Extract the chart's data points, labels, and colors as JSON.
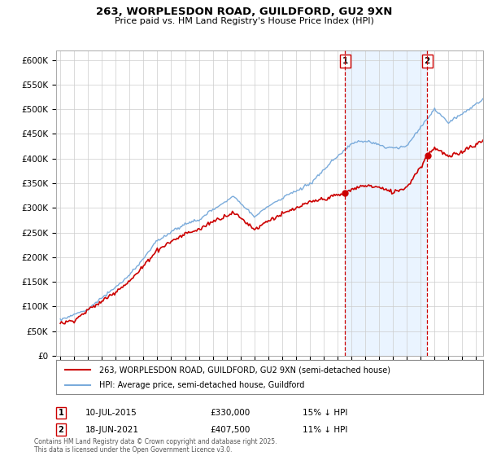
{
  "title_line1": "263, WORPLESDON ROAD, GUILDFORD, GU2 9XN",
  "title_line2": "Price paid vs. HM Land Registry's House Price Index (HPI)",
  "ylim": [
    0,
    620000
  ],
  "ytick_step": 50000,
  "x_start_year": 1995,
  "x_end_year": 2025,
  "line1_color": "#cc0000",
  "line2_color": "#7aabdb",
  "purchase1_price": 330000,
  "purchase1_date": "10-JUL-2015",
  "purchase1_label": "15% ↓ HPI",
  "purchase1_year": 2015.53,
  "purchase2_price": 407500,
  "purchase2_date": "18-JUN-2021",
  "purchase2_label": "11% ↓ HPI",
  "purchase2_year": 2021.46,
  "legend_label1": "263, WORPLESDON ROAD, GUILDFORD, GU2 9XN (semi-detached house)",
  "legend_label2": "HPI: Average price, semi-detached house, Guildford",
  "footnote": "Contains HM Land Registry data © Crown copyright and database right 2025.\nThis data is licensed under the Open Government Licence v3.0.",
  "background_color": "#ffffff",
  "grid_color": "#cccccc",
  "vline_color": "#cc0000",
  "shade_color": "#ddeeff",
  "annotation1_label": "1",
  "annotation2_label": "2",
  "dot_color": "#cc0000"
}
